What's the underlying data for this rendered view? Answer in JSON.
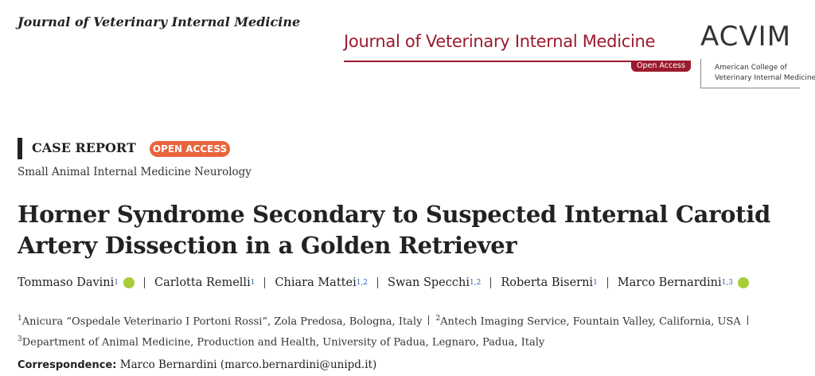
{
  "header": {
    "running_title": "Journal of Veterinary Internal Medicine",
    "logo_title": "Journal of Veterinary Internal Medicine",
    "logo_badge": "Open Access",
    "society_acronym": "ACVIM",
    "society_name": [
      "American College of",
      "Veterinary Internal Medicine"
    ]
  },
  "article": {
    "type": "CASE REPORT",
    "access": "OPEN ACCESS",
    "subject": "Small Animal Internal Medicine Neurology",
    "title": [
      "Horner Syndrome Secondary to Suspected Internal Carotid",
      "Artery Dissection in a Golden Retriever"
    ],
    "authors": [
      {
        "name": "Tommaso Davini",
        "affiliation": "1"
      },
      {
        "name": "Carlotta Remelli",
        "affiliation": "1"
      },
      {
        "name": "Chiara Mattei",
        "affiliation": "1,2"
      },
      {
        "name": "Swan Specchi",
        "affiliation": "1,2"
      },
      {
        "name": "Roberta Biserni",
        "affiliation": "1"
      },
      {
        "name": "Marco Bernardini",
        "affiliation": "1,3"
      }
    ],
    "affiliations": [
      {
        "number": "1",
        "text": "Anicura “Ospedale Veterinario I Portoni Rossi”, Zola Predosa, Bologna, Italy"
      },
      {
        "number": "2",
        "text": "Antech Imaging Service, Fountain Valley, California, USA"
      },
      {
        "number": "3",
        "text": "Department of Animal Medicine, Production and Health, University of Padua, Legnaro, Padua, Italy"
      }
    ],
    "correspondence": {
      "label": "Correspondence:",
      "contact": "Marco Bernardini (marco.bernardini@unipd.it)"
    }
  }
}
